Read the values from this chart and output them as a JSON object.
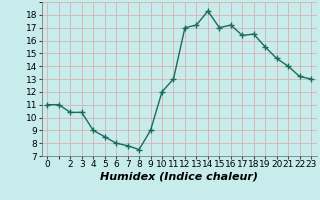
{
  "x": [
    0,
    1,
    2,
    3,
    4,
    5,
    6,
    7,
    8,
    9,
    10,
    11,
    12,
    13,
    14,
    15,
    16,
    17,
    18,
    19,
    20,
    21,
    22,
    23
  ],
  "y": [
    11,
    11,
    10.4,
    10.4,
    9,
    8.5,
    8,
    7.8,
    7.5,
    9,
    12,
    13,
    17,
    17.2,
    18.3,
    17,
    17.2,
    16.4,
    16.5,
    15.5,
    14.6,
    14,
    13.2,
    13
  ],
  "line_color": "#1a6b5a",
  "marker": "+",
  "marker_size": 4,
  "bg_color": "#c8ecec",
  "grid_major_color": "#d9b0b0",
  "grid_minor_color": "#c8ecec",
  "xlabel": "Humidex (Indice chaleur)",
  "xlim": [
    -0.5,
    23.5
  ],
  "ylim": [
    7,
    19
  ],
  "yticks": [
    7,
    8,
    9,
    10,
    11,
    12,
    13,
    14,
    15,
    16,
    17,
    18
  ],
  "xticks": [
    0,
    2,
    3,
    4,
    5,
    6,
    7,
    8,
    9,
    10,
    11,
    12,
    13,
    14,
    15,
    16,
    17,
    18,
    19,
    20,
    21,
    22,
    23
  ],
  "xlabel_fontsize": 8,
  "tick_fontsize": 6.5,
  "line_width": 1.0,
  "marker_color": "#1a6b5a"
}
